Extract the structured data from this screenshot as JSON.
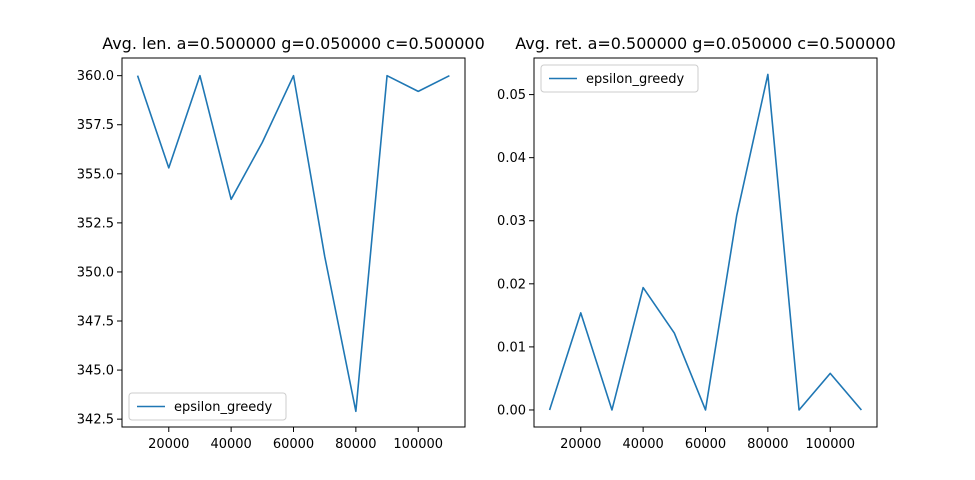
{
  "colors": {
    "series": "#1f77b4",
    "background": "#ffffff",
    "axes": "#000000"
  },
  "chart_data": [
    {
      "type": "line",
      "title": "Avg. len. a=0.500000 g=0.050000 c=0.500000",
      "xlabel": "",
      "ylabel": "",
      "xlim": [
        5000,
        115000
      ],
      "ylim": [
        342.1,
        360.9
      ],
      "xticks": [
        20000,
        40000,
        60000,
        80000,
        100000
      ],
      "xtick_labels": [
        "20000",
        "40000",
        "60000",
        "80000",
        "100000"
      ],
      "yticks": [
        342.5,
        345.0,
        347.5,
        350.0,
        352.5,
        355.0,
        357.5,
        360.0
      ],
      "ytick_labels": [
        "342.5",
        "345.0",
        "347.5",
        "350.0",
        "352.5",
        "355.0",
        "357.5",
        "360.0"
      ],
      "grid": false,
      "legend": {
        "position": "lower-left",
        "entries": [
          "epsilon_greedy"
        ]
      },
      "series": [
        {
          "name": "epsilon_greedy",
          "x": [
            10000,
            20000,
            30000,
            40000,
            50000,
            60000,
            70000,
            80000,
            90000,
            100000,
            110000
          ],
          "y": [
            360.0,
            355.3,
            360.0,
            353.7,
            356.6,
            360.0,
            350.8,
            342.9,
            360.0,
            359.2,
            360.0
          ]
        }
      ]
    },
    {
      "type": "line",
      "title": "Avg. ret. a=0.500000 g=0.050000 c=0.500000",
      "xlabel": "",
      "ylabel": "",
      "xlim": [
        5000,
        115000
      ],
      "ylim": [
        -0.0027,
        0.0558
      ],
      "xticks": [
        20000,
        40000,
        60000,
        80000,
        100000
      ],
      "xtick_labels": [
        "20000",
        "40000",
        "60000",
        "80000",
        "100000"
      ],
      "yticks": [
        0.0,
        0.01,
        0.02,
        0.03,
        0.04,
        0.05
      ],
      "ytick_labels": [
        "0.00",
        "0.01",
        "0.02",
        "0.03",
        "0.04",
        "0.05"
      ],
      "grid": false,
      "legend": {
        "position": "upper-left",
        "entries": [
          "epsilon_greedy"
        ]
      },
      "series": [
        {
          "name": "epsilon_greedy",
          "x": [
            10000,
            20000,
            30000,
            40000,
            50000,
            60000,
            70000,
            80000,
            90000,
            100000,
            110000
          ],
          "y": [
            0.0,
            0.0154,
            0.0,
            0.0194,
            0.0122,
            0.0,
            0.0308,
            0.0532,
            0.0,
            0.0058,
            0.0
          ]
        }
      ]
    }
  ]
}
